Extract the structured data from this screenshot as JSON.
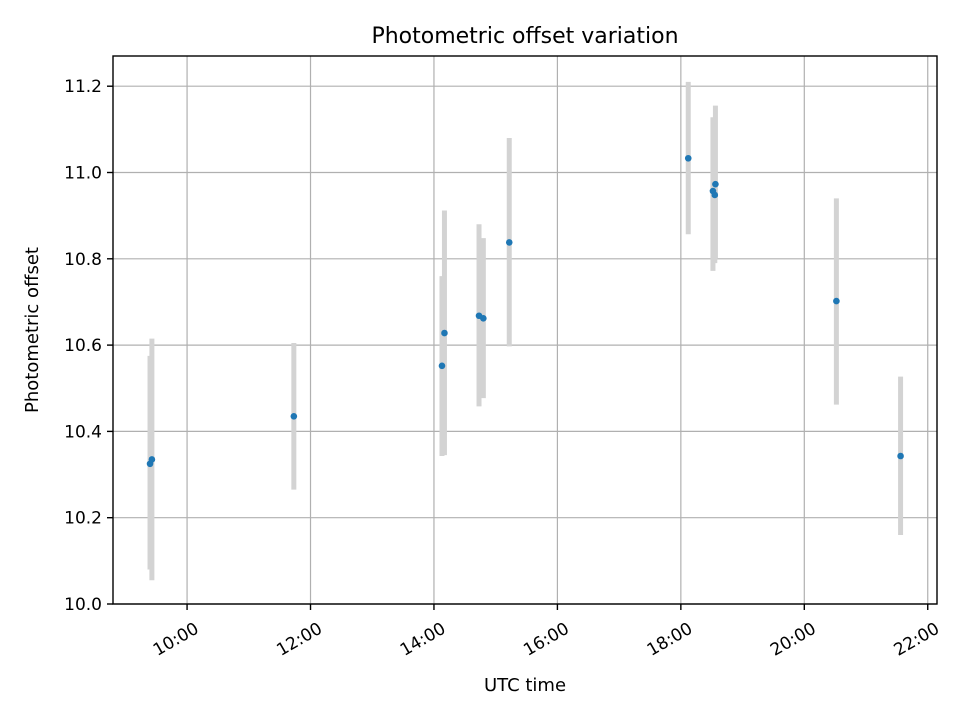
{
  "chart_data": {
    "type": "scatter",
    "title": "Photometric offset variation",
    "xlabel": "UTC time",
    "ylabel": "Photometric offset",
    "x_unit": "hours",
    "xlim": [
      8.8,
      22.15
    ],
    "ylim": [
      10.0,
      11.27
    ],
    "x_ticks": [
      {
        "value": 10,
        "label": "10:00"
      },
      {
        "value": 12,
        "label": "12:00"
      },
      {
        "value": 14,
        "label": "14:00"
      },
      {
        "value": 16,
        "label": "16:00"
      },
      {
        "value": 18,
        "label": "18:00"
      },
      {
        "value": 20,
        "label": "20:00"
      },
      {
        "value": 22,
        "label": "22:00"
      }
    ],
    "y_ticks": [
      {
        "value": 10.0,
        "label": "10.0"
      },
      {
        "value": 10.2,
        "label": "10.2"
      },
      {
        "value": 10.4,
        "label": "10.4"
      },
      {
        "value": 10.6,
        "label": "10.6"
      },
      {
        "value": 10.8,
        "label": "10.8"
      },
      {
        "value": 11.0,
        "label": "11.0"
      },
      {
        "value": 11.2,
        "label": "11.2"
      }
    ],
    "grid": true,
    "marker_color": "#1f77b4",
    "errorbar_color": "#d3d3d3",
    "points": [
      {
        "x": 9.4,
        "y": 10.325,
        "yerr_low": 10.08,
        "yerr_high": 10.575
      },
      {
        "x": 9.43,
        "y": 10.335,
        "yerr_low": 10.055,
        "yerr_high": 10.615
      },
      {
        "x": 11.73,
        "y": 10.435,
        "yerr_low": 10.265,
        "yerr_high": 10.605
      },
      {
        "x": 14.13,
        "y": 10.552,
        "yerr_low": 10.343,
        "yerr_high": 10.76
      },
      {
        "x": 14.17,
        "y": 10.628,
        "yerr_low": 10.345,
        "yerr_high": 10.912
      },
      {
        "x": 14.73,
        "y": 10.668,
        "yerr_low": 10.458,
        "yerr_high": 10.88
      },
      {
        "x": 14.8,
        "y": 10.662,
        "yerr_low": 10.477,
        "yerr_high": 10.848
      },
      {
        "x": 15.22,
        "y": 10.838,
        "yerr_low": 10.597,
        "yerr_high": 11.08
      },
      {
        "x": 18.12,
        "y": 11.033,
        "yerr_low": 10.857,
        "yerr_high": 11.21
      },
      {
        "x": 18.52,
        "y": 10.957,
        "yerr_low": 10.772,
        "yerr_high": 11.128
      },
      {
        "x": 18.55,
        "y": 10.948,
        "yerr_low": 10.79,
        "yerr_high": 11.1
      },
      {
        "x": 18.56,
        "y": 10.973,
        "yerr_low": 10.8,
        "yerr_high": 11.155
      },
      {
        "x": 20.52,
        "y": 10.702,
        "yerr_low": 10.462,
        "yerr_high": 10.94
      },
      {
        "x": 21.56,
        "y": 10.343,
        "yerr_low": 10.16,
        "yerr_high": 10.527
      }
    ]
  }
}
